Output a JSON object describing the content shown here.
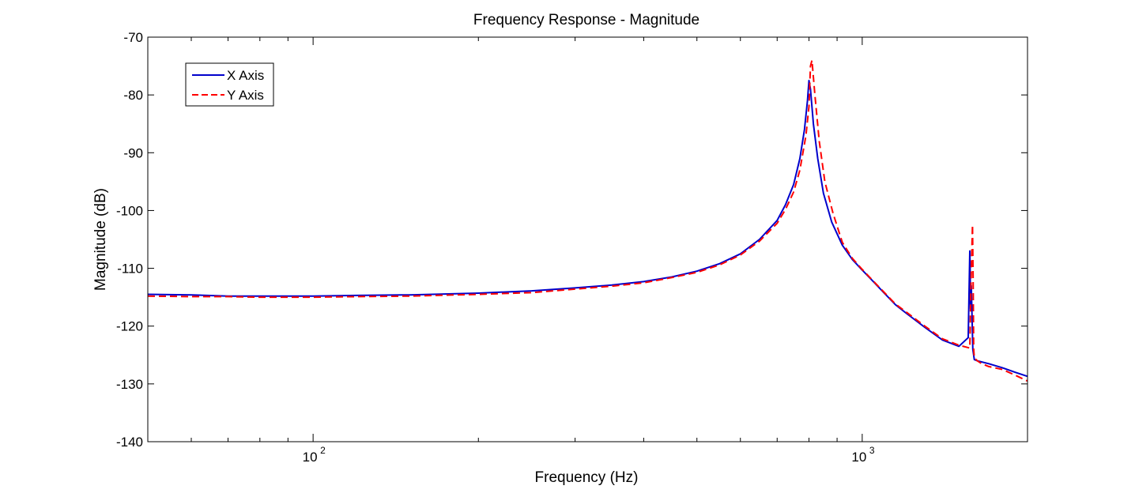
{
  "chart_data": {
    "type": "line",
    "title": "Frequency Response - Magnitude",
    "xlabel": "Frequency (Hz)",
    "ylabel": "Magnitude (dB)",
    "x_scale": "log",
    "xlim": [
      50,
      2000
    ],
    "ylim": [
      -140,
      -70
    ],
    "x_ticks": [
      {
        "value": 100,
        "base": "10",
        "exponent": "2"
      },
      {
        "value": 1000,
        "base": "10",
        "exponent": "3"
      }
    ],
    "y_ticks": [
      -70,
      -80,
      -90,
      -100,
      -110,
      -120,
      -130,
      -140
    ],
    "grid": false,
    "legend_position": "top-left",
    "series": [
      {
        "name": "X Axis",
        "color": "#0000cc",
        "style": "solid",
        "x": [
          50,
          60,
          70,
          80,
          90,
          100,
          120,
          150,
          200,
          250,
          300,
          350,
          400,
          450,
          500,
          550,
          600,
          650,
          700,
          725,
          750,
          770,
          785,
          795,
          800,
          805,
          815,
          830,
          850,
          880,
          920,
          960,
          1000,
          1050,
          1100,
          1150,
          1200,
          1300,
          1400,
          1500,
          1560,
          1570,
          1572,
          1575,
          1580,
          1590,
          1600,
          1620,
          1700,
          1800,
          1900,
          2000
        ],
        "y": [
          -114.5,
          -114.6,
          -114.8,
          -114.8,
          -114.8,
          -114.8,
          -114.7,
          -114.6,
          -114.3,
          -113.9,
          -113.4,
          -112.9,
          -112.3,
          -111.5,
          -110.5,
          -109.2,
          -107.5,
          -105,
          -101.7,
          -99,
          -95.5,
          -91,
          -86,
          -81,
          -77.5,
          -79,
          -85,
          -91,
          -97,
          -102,
          -106,
          -108.5,
          -110.3,
          -112.4,
          -114.4,
          -116.3,
          -117.7,
          -120.2,
          -122.4,
          -123.5,
          -122,
          -107,
          -109,
          -117,
          -113,
          -124,
          -125.8,
          -126,
          -126.5,
          -127.2,
          -128,
          -128.7
        ]
      },
      {
        "name": "Y Axis",
        "color": "#ff0000",
        "style": "dashed",
        "x": [
          50,
          60,
          70,
          80,
          90,
          100,
          120,
          150,
          200,
          250,
          300,
          350,
          400,
          450,
          500,
          550,
          600,
          650,
          700,
          725,
          750,
          770,
          790,
          800,
          805,
          810,
          820,
          835,
          855,
          885,
          920,
          960,
          1000,
          1050,
          1100,
          1150,
          1200,
          1300,
          1400,
          1500,
          1570,
          1580,
          1588,
          1592,
          1596,
          1600,
          1620,
          1650,
          1700,
          1800,
          1900,
          2000
        ],
        "y": [
          -114.8,
          -114.9,
          -114.9,
          -115,
          -115,
          -115,
          -114.9,
          -114.8,
          -114.5,
          -114.2,
          -113.6,
          -113.1,
          -112.5,
          -111.6,
          -110.7,
          -109.4,
          -107.7,
          -105.3,
          -102.2,
          -99.8,
          -96.8,
          -93,
          -87,
          -82,
          -75,
          -74,
          -80,
          -88,
          -95,
          -100.5,
          -105.5,
          -108.3,
          -110.2,
          -112.3,
          -114.3,
          -116.2,
          -117.5,
          -120,
          -122.2,
          -123.3,
          -123.8,
          -110,
          -102.5,
          -112,
          -124,
          -125.5,
          -126,
          -126.5,
          -127,
          -127.5,
          -128.5,
          -129.5
        ]
      }
    ]
  }
}
